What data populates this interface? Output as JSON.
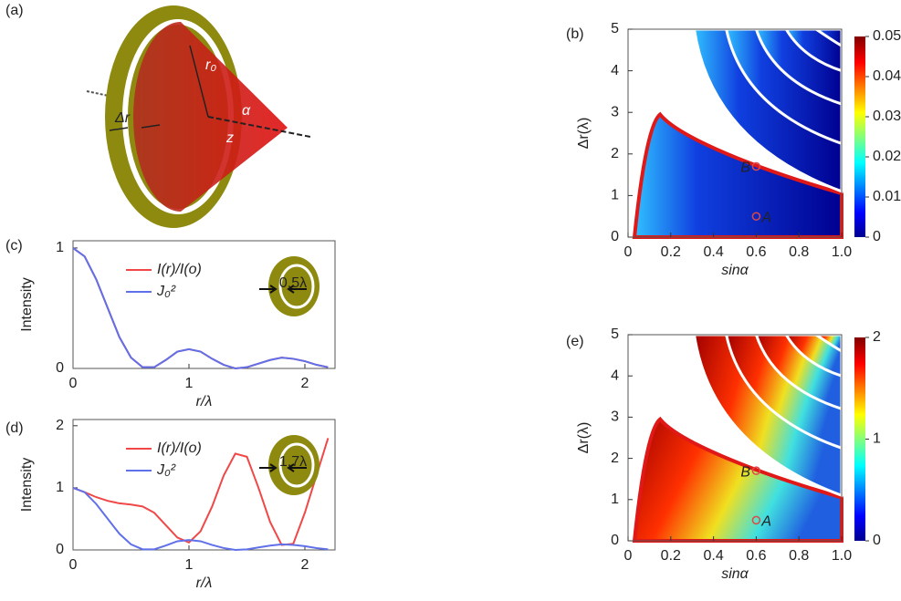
{
  "panel_labels": [
    "(a)",
    "(b)",
    "(c)",
    "(d)",
    "(e)"
  ],
  "diagram": {
    "labels": [
      "r₀",
      "α",
      "Δr",
      "z"
    ]
  },
  "chart_data": [
    {
      "type": "line",
      "xlabel": "r/λ",
      "ylabel": "Intensity",
      "inset_label": "0.5λ",
      "x": [
        0,
        0.1,
        0.2,
        0.3,
        0.4,
        0.5,
        0.6,
        0.7,
        0.8,
        0.9,
        1.0,
        1.1,
        1.2,
        1.3,
        1.4,
        1.5,
        1.6,
        1.7,
        1.8,
        1.9,
        2.0,
        2.1,
        2.2
      ],
      "xlim": [
        0,
        2.26
      ],
      "ylim": [
        0,
        1.06
      ],
      "xticks": [
        0,
        1,
        2
      ],
      "yticks": [
        0,
        1
      ],
      "series": [
        {
          "name": "I(r)/I(o)",
          "color": "#f04848",
          "values": [
            1,
            0.93,
            0.74,
            0.5,
            0.26,
            0.09,
            0.01,
            0.01,
            0.07,
            0.14,
            0.16,
            0.14,
            0.08,
            0.03,
            0,
            0.01,
            0.04,
            0.07,
            0.09,
            0.08,
            0.06,
            0.03,
            0.01
          ]
        },
        {
          "name": "J₀²",
          "color": "#6070e8",
          "values": [
            1,
            0.93,
            0.74,
            0.5,
            0.26,
            0.09,
            0.01,
            0.01,
            0.07,
            0.14,
            0.16,
            0.14,
            0.08,
            0.03,
            0,
            0.01,
            0.04,
            0.07,
            0.09,
            0.08,
            0.06,
            0.03,
            0.01
          ]
        }
      ]
    },
    {
      "type": "line",
      "xlabel": "r/λ",
      "ylabel": "Intensity",
      "inset_label": "1.7λ",
      "x": [
        0,
        0.1,
        0.2,
        0.3,
        0.4,
        0.5,
        0.6,
        0.7,
        0.8,
        0.9,
        1.0,
        1.1,
        1.2,
        1.3,
        1.4,
        1.5,
        1.6,
        1.7,
        1.8,
        1.9,
        2.0,
        2.1,
        2.2
      ],
      "xlim": [
        0,
        2.26
      ],
      "ylim": [
        0,
        2.1
      ],
      "xticks": [
        0,
        1,
        2
      ],
      "yticks": [
        0,
        1,
        2
      ],
      "series": [
        {
          "name": "I(r)/I(o)",
          "color": "#f04848",
          "values": [
            1,
            0.93,
            0.85,
            0.79,
            0.75,
            0.73,
            0.7,
            0.6,
            0.4,
            0.2,
            0.12,
            0.3,
            0.7,
            1.2,
            1.55,
            1.5,
            1.0,
            0.45,
            0.08,
            0.1,
            0.6,
            1.2,
            1.8
          ]
        },
        {
          "name": "J₀²",
          "color": "#6070e8",
          "values": [
            1,
            0.93,
            0.74,
            0.5,
            0.26,
            0.09,
            0.01,
            0.01,
            0.07,
            0.14,
            0.16,
            0.14,
            0.08,
            0.03,
            0,
            0.01,
            0.04,
            0.07,
            0.09,
            0.08,
            0.06,
            0.03,
            0.01
          ]
        }
      ]
    },
    {
      "type": "heatmap",
      "xlabel": "sinα",
      "ylabel": "Δr(λ)",
      "xlim": [
        0,
        1
      ],
      "ylim": [
        0,
        5
      ],
      "xticks": [
        0,
        0.2,
        0.4,
        0.6,
        0.8,
        {
          "value": 1,
          "label": "1.0"
        }
      ],
      "yticks": [
        0,
        1,
        2,
        3,
        4,
        5
      ],
      "colorbar": {
        "lim": [
          0,
          0.05
        ],
        "ticks": [
          0,
          0.01,
          0.02,
          0.03,
          0.04,
          0.05
        ]
      },
      "points": [
        {
          "label": "A",
          "x": 0.6,
          "y": 0.5
        },
        {
          "label": "B",
          "x": 0.6,
          "y": 1.7
        }
      ]
    },
    {
      "type": "heatmap",
      "xlabel": "sinα",
      "ylabel": "Δr(λ)",
      "xlim": [
        0,
        1
      ],
      "ylim": [
        0,
        5
      ],
      "xticks": [
        0,
        0.2,
        0.4,
        0.6,
        0.8,
        {
          "value": 1,
          "label": "1.0"
        }
      ],
      "yticks": [
        0,
        1,
        2,
        3,
        4,
        5
      ],
      "colorbar": {
        "lim": [
          0,
          2
        ],
        "ticks": [
          0,
          1,
          2
        ]
      },
      "points": [
        {
          "label": "A",
          "x": 0.6,
          "y": 0.5
        },
        {
          "label": "B",
          "x": 0.6,
          "y": 1.7
        }
      ]
    }
  ]
}
